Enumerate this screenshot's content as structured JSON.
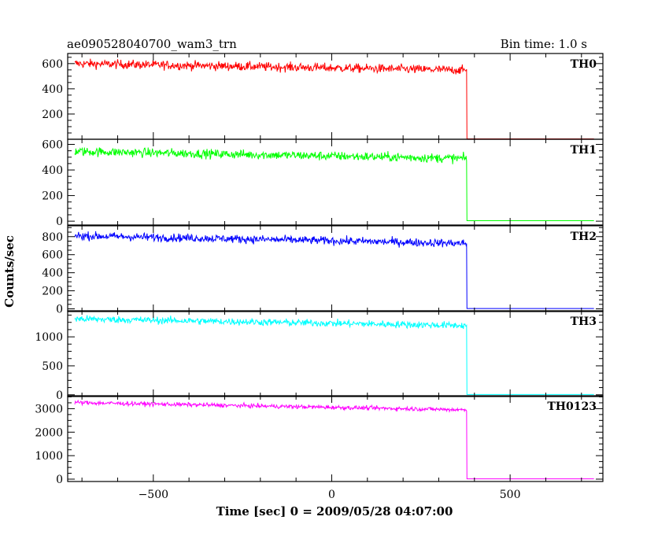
{
  "chart_data": {
    "type": "line",
    "title": "ae090528040700_wam3_trn",
    "subtitle": "Bin time: 1.0 s",
    "xlabel": "Time [sec] 0 = 2009/05/28 04:07:00",
    "ylabel": "Counts/sec",
    "xlim": [
      -740,
      760
    ],
    "x_ticks": [
      -500,
      0,
      500
    ],
    "x_tick_labels": [
      "−500",
      "0",
      "500"
    ],
    "drop_time": 378,
    "end_time": 735,
    "start_time": -720,
    "panels": [
      {
        "name": "TH0",
        "color": "#ff0000",
        "ylim": [
          0,
          680
        ],
        "y_ticks": [
          200,
          400,
          600
        ],
        "y_tick_labels": [
          "200",
          "400",
          "600"
        ],
        "level_start": 600,
        "level_end": 548,
        "noise": 22,
        "after_value": 3
      },
      {
        "name": "TH1",
        "color": "#00ff00",
        "ylim": [
          -30,
          640
        ],
        "y_ticks": [
          0,
          200,
          400,
          600
        ],
        "y_tick_labels": [
          "0",
          "200",
          "400",
          "600"
        ],
        "level_start": 545,
        "level_end": 490,
        "noise": 22,
        "after_value": 4
      },
      {
        "name": "TH2",
        "color": "#0000ff",
        "ylim": [
          -30,
          920
        ],
        "y_ticks": [
          0,
          200,
          400,
          600,
          800
        ],
        "y_tick_labels": [
          "0",
          "200",
          "400",
          "600",
          "800"
        ],
        "level_start": 810,
        "level_end": 725,
        "noise": 28,
        "after_value": 4
      },
      {
        "name": "TH3",
        "color": "#00ffff",
        "ylim": [
          -30,
          1450
        ],
        "y_ticks": [
          0,
          500,
          1000
        ],
        "y_tick_labels": [
          "0",
          "500",
          "1000"
        ],
        "level_start": 1310,
        "level_end": 1195,
        "noise": 38,
        "after_value": 5
      },
      {
        "name": "TH0123",
        "color": "#ff00ff",
        "ylim": [
          -100,
          3550
        ],
        "y_ticks": [
          0,
          1000,
          2000,
          3000
        ],
        "y_tick_labels": [
          "0",
          "1000",
          "2000",
          "3000"
        ],
        "level_start": 3260,
        "level_end": 2950,
        "noise": 55,
        "after_value": 15
      }
    ]
  }
}
